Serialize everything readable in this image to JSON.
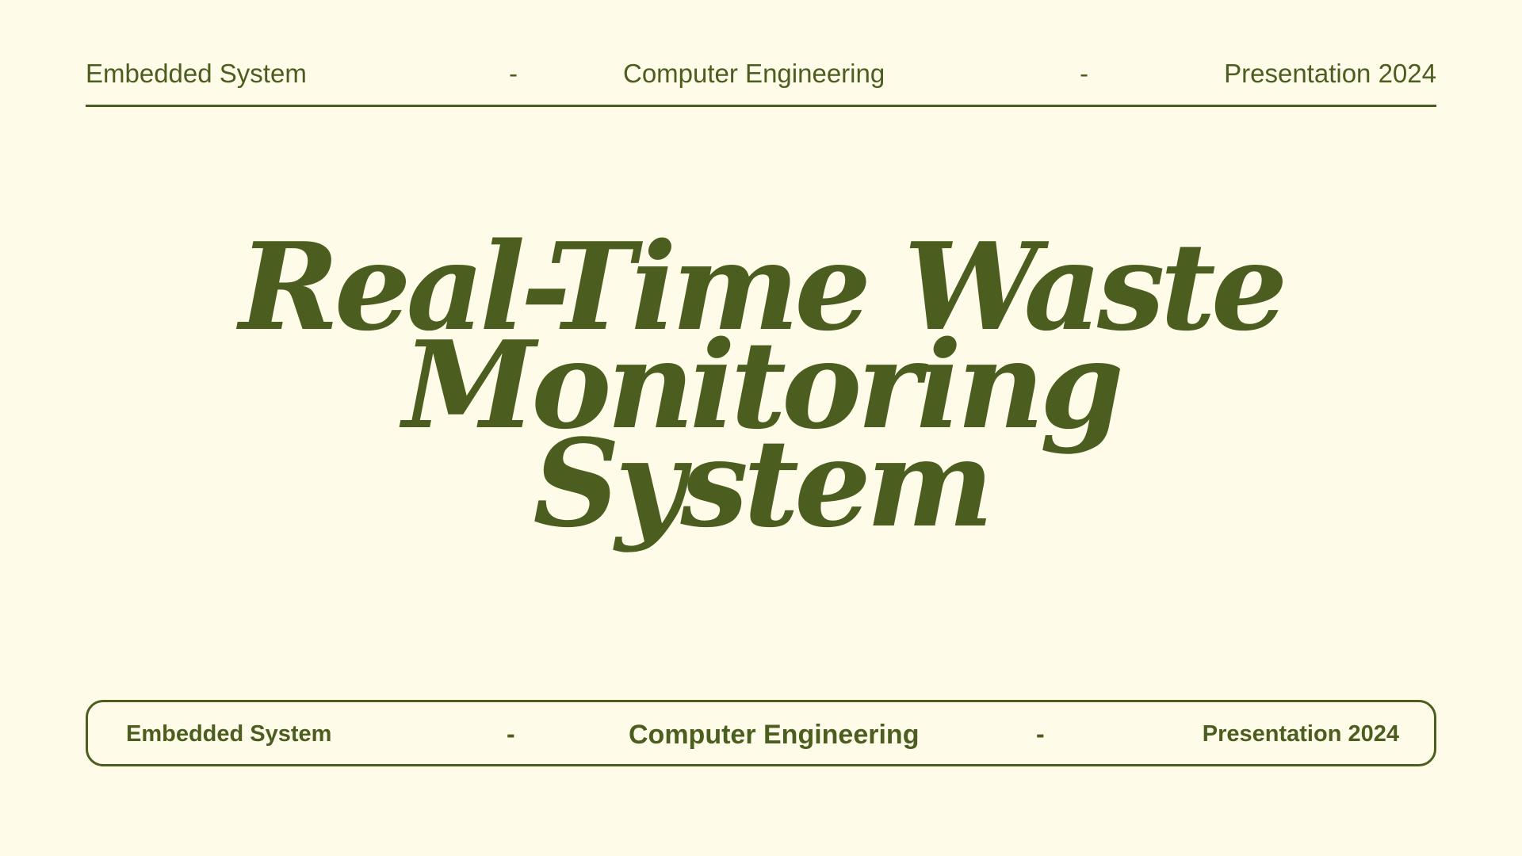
{
  "header": {
    "left": "Embedded System",
    "separator_1": "-",
    "center": "Computer Engineering",
    "separator_2": "-",
    "right": "Presentation 2024"
  },
  "title": {
    "line_1": "Real-Time Waste",
    "line_2": "Monitoring",
    "line_3": "System"
  },
  "footer": {
    "left": "Embedded System",
    "separator_1": "-",
    "center": "Computer Engineering",
    "separator_2": "-",
    "right": "Presentation 2024"
  },
  "colors": {
    "background": "#fefbe9",
    "accent": "#4b5e1f"
  }
}
